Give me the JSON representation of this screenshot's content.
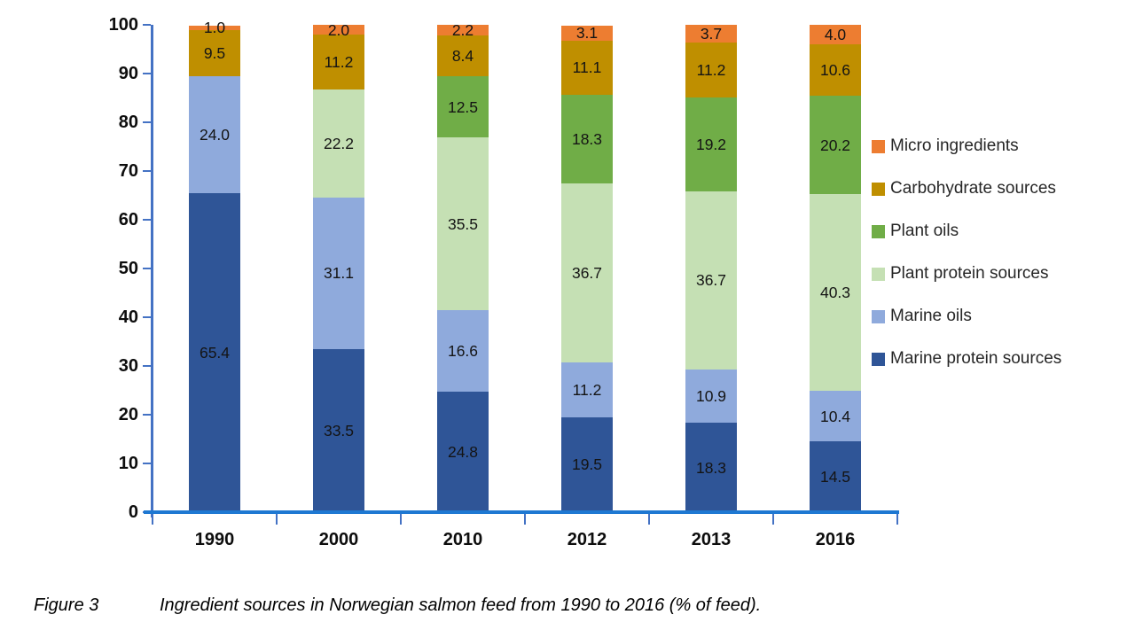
{
  "figure": {
    "caption_label": "Figure 3",
    "caption_text": "Ingredient sources in Norwegian salmon feed from 1990 to 2016 (% of feed)."
  },
  "chart_data": {
    "type": "bar",
    "stacked": true,
    "title": "",
    "xlabel": "",
    "ylabel": "",
    "ylim": [
      0,
      100
    ],
    "ytick_step": 10,
    "grid": false,
    "legend_position": "right",
    "legend_order_top_to_bottom": [
      "Micro ingredients",
      "Carbohydrate sources",
      "Plant oils",
      "Plant protein sources",
      "Marine oils",
      "Marine protein sources"
    ],
    "categories": [
      "1990",
      "2000",
      "2010",
      "2012",
      "2013",
      "2016"
    ],
    "series": [
      {
        "name": "Marine protein sources",
        "color": "#2F5597",
        "values": [
          65.4,
          33.5,
          24.8,
          19.5,
          18.3,
          14.5
        ]
      },
      {
        "name": "Marine oils",
        "color": "#8FAADC",
        "values": [
          24.0,
          31.1,
          16.6,
          11.2,
          10.9,
          10.4
        ]
      },
      {
        "name": "Plant protein sources",
        "color": "#C5E0B4",
        "values": [
          null,
          22.2,
          35.5,
          36.7,
          36.7,
          40.3
        ]
      },
      {
        "name": "Plant oils",
        "color": "#70AD47",
        "values": [
          null,
          null,
          12.5,
          18.3,
          19.2,
          20.2
        ]
      },
      {
        "name": "Carbohydrate sources",
        "color": "#BF8F00",
        "values": [
          9.5,
          11.2,
          8.4,
          11.1,
          11.2,
          10.6
        ]
      },
      {
        "name": "Micro ingredients",
        "color": "#ED7D31",
        "values": [
          1.0,
          2.0,
          2.2,
          3.1,
          3.7,
          4.0
        ]
      }
    ],
    "value_label_decimals": 1,
    "axis_colors": {
      "y_axis": "#4472C4",
      "x_axis": "#1E78D2",
      "tick": "#4472C4"
    }
  }
}
